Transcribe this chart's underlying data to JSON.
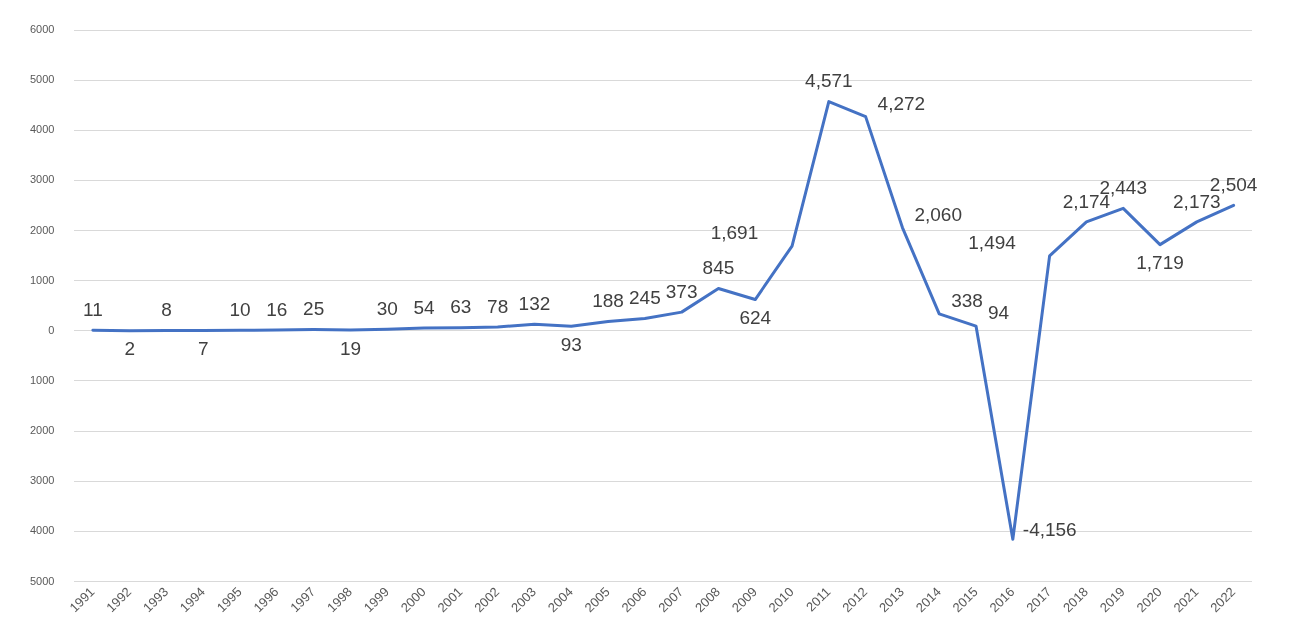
{
  "chart_data": {
    "type": "line",
    "categories": [
      "1991",
      "1992",
      "1993",
      "1994",
      "1995",
      "1996",
      "1997",
      "1998",
      "1999",
      "2000",
      "2001",
      "2002",
      "2003",
      "2004",
      "2005",
      "2006",
      "2007",
      "2008",
      "2009",
      "2010",
      "2011",
      "2012",
      "2013",
      "2014",
      "2015",
      "2016",
      "2017",
      "2018",
      "2019",
      "2020",
      "2021",
      "2022"
    ],
    "series": [
      {
        "color": "#4472c4",
        "values": [
          11,
          2,
          8,
          7,
          10,
          16,
          25,
          19,
          30,
          54,
          63,
          78,
          132,
          93,
          188,
          245,
          373,
          845,
          624,
          1691,
          4571,
          4272,
          2060,
          338,
          94,
          -4156,
          1494,
          2174,
          2443,
          1719,
          2173,
          2504
        ],
        "value_labels": [
          "11",
          "2",
          "8",
          "7",
          "10",
          "16",
          "25",
          "19",
          "30",
          "54",
          "63",
          "78",
          "132",
          "93",
          "188",
          "245",
          "373",
          "845",
          "624",
          "1,691",
          "4,571",
          "4,272",
          "2,060",
          "338",
          "94",
          "-4,156",
          "1,494",
          "2,174",
          "2,443",
          "1,719",
          "2,173",
          "2,504"
        ]
      }
    ],
    "ylim": [
      -5000,
      6000
    ],
    "yticks": [
      {
        "value": -5000,
        "label": "5000"
      },
      {
        "value": -4000,
        "label": "4000"
      },
      {
        "value": -3000,
        "label": "3000"
      },
      {
        "value": -2000,
        "label": "2000"
      },
      {
        "value": -1000,
        "label": "1000"
      },
      0,
      1000,
      2000,
      3000,
      4000,
      5000,
      6000
    ],
    "grid": "y",
    "legend": false,
    "marker": "none",
    "line_style": "solid"
  }
}
